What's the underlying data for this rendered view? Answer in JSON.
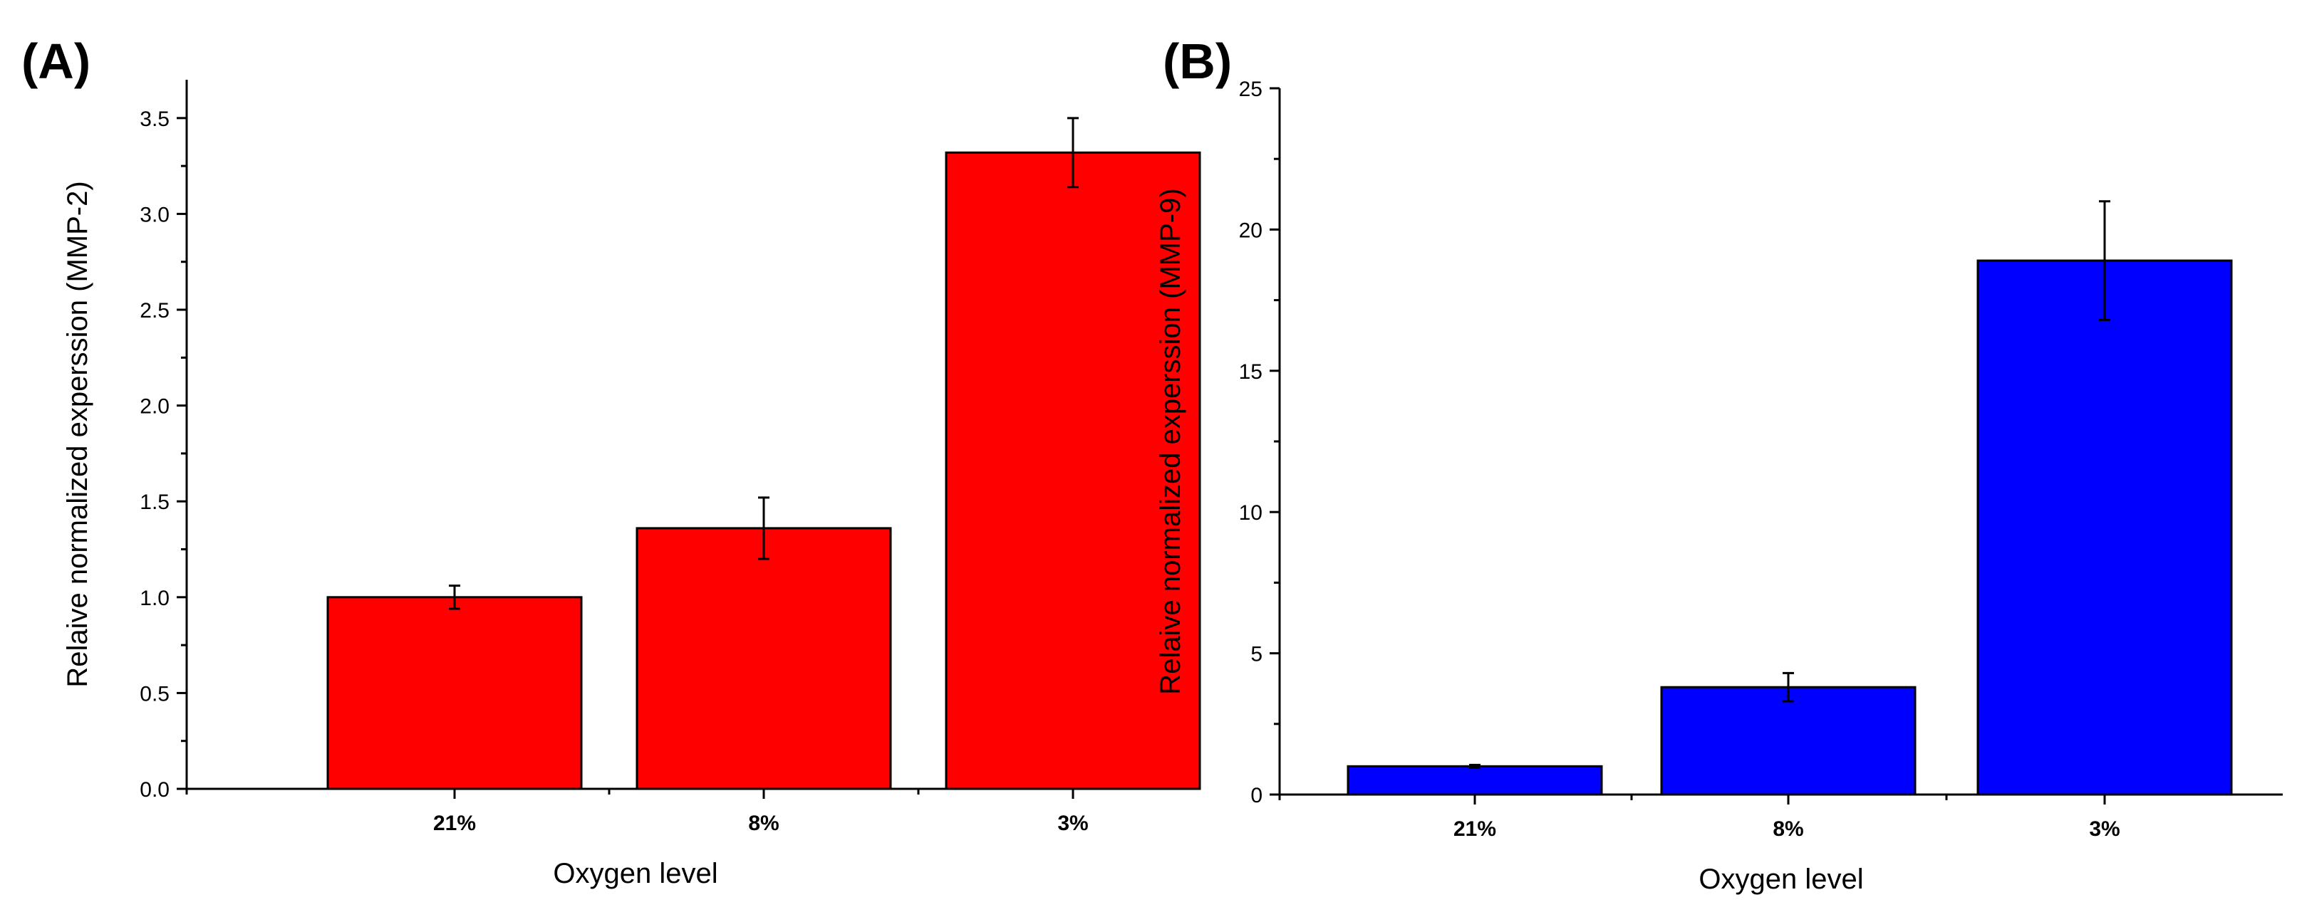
{
  "chart_data": [
    {
      "type": "bar",
      "panel_label": "(A)",
      "categories": [
        "21%",
        "8%",
        "3%"
      ],
      "values": [
        1.0,
        1.36,
        3.32
      ],
      "errors": [
        0.06,
        0.16,
        0.18
      ],
      "xlabel": "Oxygen level",
      "ylabel": "Relaive normalized experssion (MMP-2)",
      "ylim": [
        0,
        3.7
      ],
      "yticks": [
        0.0,
        0.5,
        1.0,
        1.5,
        2.0,
        2.5,
        3.0,
        3.5
      ],
      "ytick_labels": [
        "0.0",
        "0.5",
        "1.0",
        "1.5",
        "2.0",
        "2.5",
        "3.0",
        "3.5"
      ],
      "bar_color": "#ff0000",
      "grid": false,
      "legend": "none"
    },
    {
      "type": "bar",
      "panel_label": "(B)",
      "categories": [
        "21%",
        "8%",
        "3%"
      ],
      "values": [
        1.0,
        3.8,
        18.9
      ],
      "errors": [
        0.05,
        0.5,
        2.1
      ],
      "xlabel": "Oxygen level",
      "ylabel": "Relaive normalized experssion (MMP-9)",
      "ylim": [
        0,
        25
      ],
      "yticks": [
        0,
        5,
        10,
        15,
        20,
        25
      ],
      "ytick_labels": [
        "0",
        "5",
        "10",
        "15",
        "20",
        "25"
      ],
      "bar_color": "#0000ff",
      "grid": false,
      "legend": "none"
    }
  ]
}
